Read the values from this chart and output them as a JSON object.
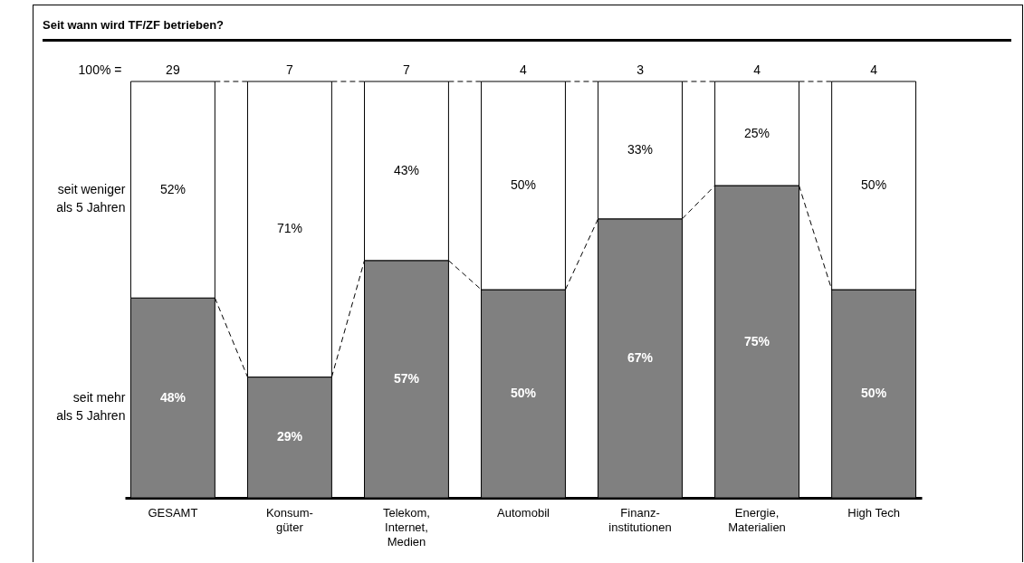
{
  "chart_data": {
    "type": "bar",
    "title": "Seit wann wird TF/ZF betrieben?",
    "categories": [
      "GESAMT",
      "Konsum-güter",
      "Telekom, Internet, Medien",
      "Automobil",
      "Finanz-institutionen",
      "Energie, Materialien",
      "High Tech"
    ],
    "stacked": true,
    "legend": "left",
    "series": [
      {
        "name": "seit mehr als 5 Jahren",
        "color": "#808080",
        "values": [
          48,
          29,
          57,
          50,
          67,
          75,
          50
        ],
        "value_labels": [
          "48%",
          "29%",
          "57%",
          "50%",
          "67%",
          "75%",
          "50%"
        ]
      },
      {
        "name": "seit weniger als 5 Jahren",
        "color": "#ffffff",
        "values": [
          52,
          71,
          43,
          50,
          33,
          25,
          50
        ],
        "value_labels": [
          "52%",
          "71%",
          "43%",
          "50%",
          "33%",
          "25%",
          "50%"
        ]
      }
    ],
    "annotations": [
      "100% =",
      {
        "text": "29",
        "x": "GESAMT",
        "y": 100
      },
      {
        "text": "7",
        "x": "Konsum-güter",
        "y": 100
      },
      {
        "text": "7",
        "x": "Telekom, Internet, Medien",
        "y": 100
      },
      {
        "text": "4",
        "x": "Automobil",
        "y": 100
      },
      {
        "text": "3",
        "x": "Finanz-institutionen",
        "y": 100
      },
      {
        "text": "4",
        "x": "Energie, Materialien",
        "y": 100
      },
      {
        "text": "4",
        "x": "High Tech",
        "y": 100
      }
    ]
  }
}
